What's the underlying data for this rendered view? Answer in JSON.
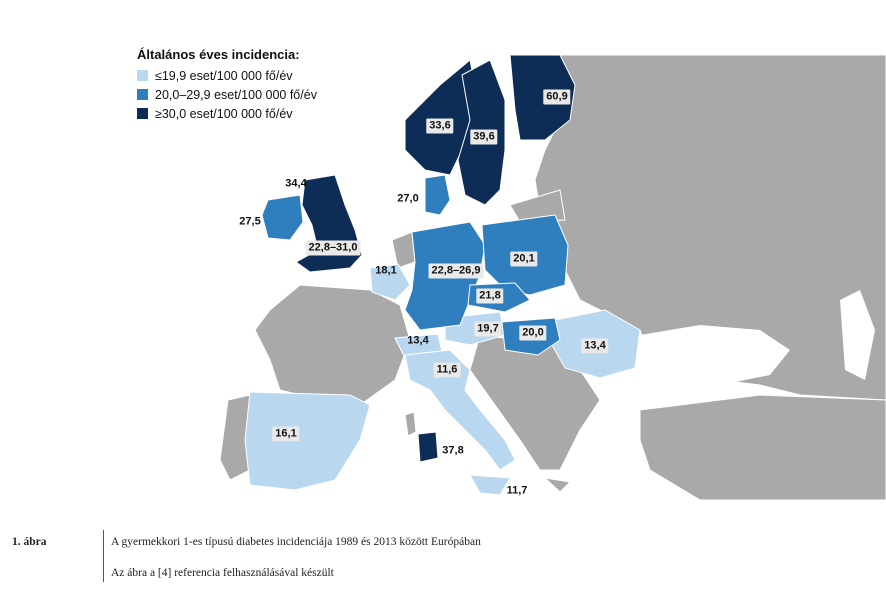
{
  "legend": {
    "title": "Általános éves incidencia:",
    "items": [
      {
        "label": "≤19,9 eset/100 000 fő/év",
        "color": "#b9d7ee"
      },
      {
        "label": "20,0–29,9 eset/100 000 fő/év",
        "color": "#2f7fbf"
      },
      {
        "label": "≥30,0 eset/100 000 fő/év",
        "color": "#0d2d57"
      }
    ]
  },
  "colors": {
    "sea": "#ffffff",
    "land_no_data": "#a9a9a9",
    "border": "#ffffff"
  },
  "regions": [
    {
      "name": "Finland",
      "value_label": "60,9"
    },
    {
      "name": "Sweden",
      "value_label": "39,6"
    },
    {
      "name": "Norway",
      "value_label": "33,6"
    },
    {
      "name": "Scotland",
      "value_label": "34,4"
    },
    {
      "name": "Ireland",
      "value_label": "27,5"
    },
    {
      "name": "Denmark",
      "value_label": "27,0"
    },
    {
      "name": "United Kingdom",
      "value_label": "22,8–31,0"
    },
    {
      "name": "Belgium",
      "value_label": "18,1"
    },
    {
      "name": "Germany",
      "value_label": "22,8–26,9"
    },
    {
      "name": "Poland",
      "value_label": "20,1"
    },
    {
      "name": "Czech Republic",
      "value_label": "21,8"
    },
    {
      "name": "Austria",
      "value_label": "19,7"
    },
    {
      "name": "Hungary",
      "value_label": "20,0"
    },
    {
      "name": "Romania",
      "value_label": "13,4"
    },
    {
      "name": "Switzerland",
      "value_label": "13,4"
    },
    {
      "name": "Italy",
      "value_label": "11,6"
    },
    {
      "name": "Spain",
      "value_label": "16,1"
    },
    {
      "name": "Sardinia",
      "value_label": "37,8"
    },
    {
      "name": "Sicily",
      "value_label": "11,7"
    }
  ],
  "caption": {
    "figure_label": "1. ábra",
    "text": "A gyermekkori 1-es típusú diabetes incidenciája 1989 és 2013 között Európában",
    "source": "Az ábra a [4] referencia felhasználásával készült"
  }
}
